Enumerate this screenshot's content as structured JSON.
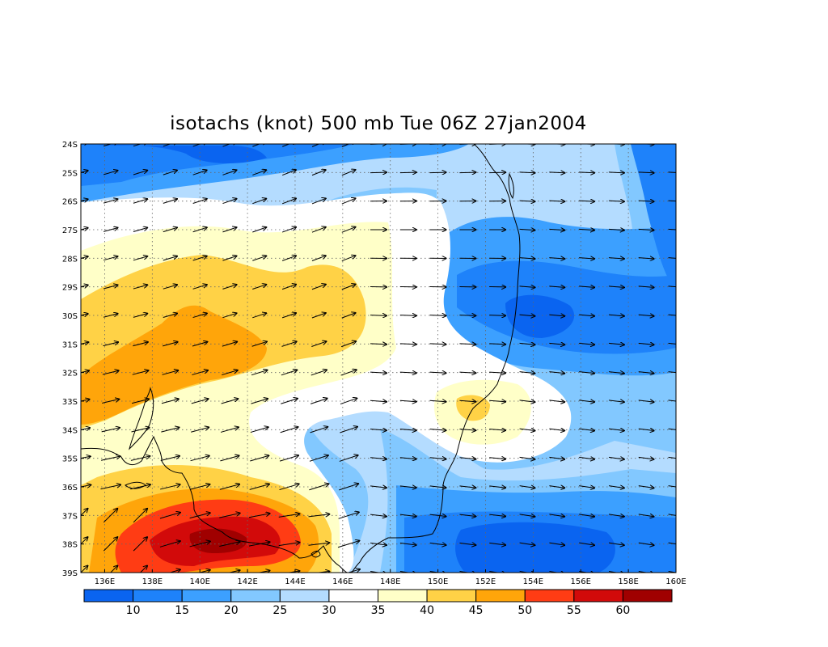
{
  "title": "isotachs (knot) 500 mb Tue 06Z 27jan2004",
  "map": {
    "x_axis": {
      "labels": [
        "136E",
        "138E",
        "140E",
        "142E",
        "144E",
        "146E",
        "148E",
        "150E",
        "152E",
        "154E",
        "156E",
        "158E",
        "160E"
      ],
      "range_deg_east": [
        135,
        160
      ]
    },
    "y_axis": {
      "labels": [
        "24S",
        "25S",
        "26S",
        "27S",
        "28S",
        "29S",
        "30S",
        "31S",
        "32S",
        "33S",
        "34S",
        "35S",
        "36S",
        "37S",
        "38S",
        "39S"
      ],
      "range_deg_south": [
        24,
        39
      ]
    },
    "grid": "dotted",
    "overlay": "wind vectors",
    "coastline": true
  },
  "colorbar": {
    "labels": [
      "10",
      "15",
      "20",
      "25",
      "30",
      "35",
      "40",
      "45",
      "50",
      "55",
      "60"
    ],
    "colors": [
      "#0a64f0",
      "#1e82fa",
      "#3ca0ff",
      "#82c8ff",
      "#b4dcff",
      "#ffffff",
      "#ffffc8",
      "#ffd246",
      "#ffa50a",
      "#ff3c14",
      "#d20a0a",
      "#a00000"
    ]
  },
  "fills": {
    "c10": "#0a64f0",
    "c15": "#1e82fa",
    "c20": "#3ca0ff",
    "c25": "#82c8ff",
    "c30": "#b4dcff",
    "c35": "#ffffff",
    "c40": "#ffffc8",
    "c45": "#ffd246",
    "c50": "#ffa50a",
    "c55": "#ff3c14",
    "c60": "#d20a0a",
    "c65": "#a00000"
  }
}
